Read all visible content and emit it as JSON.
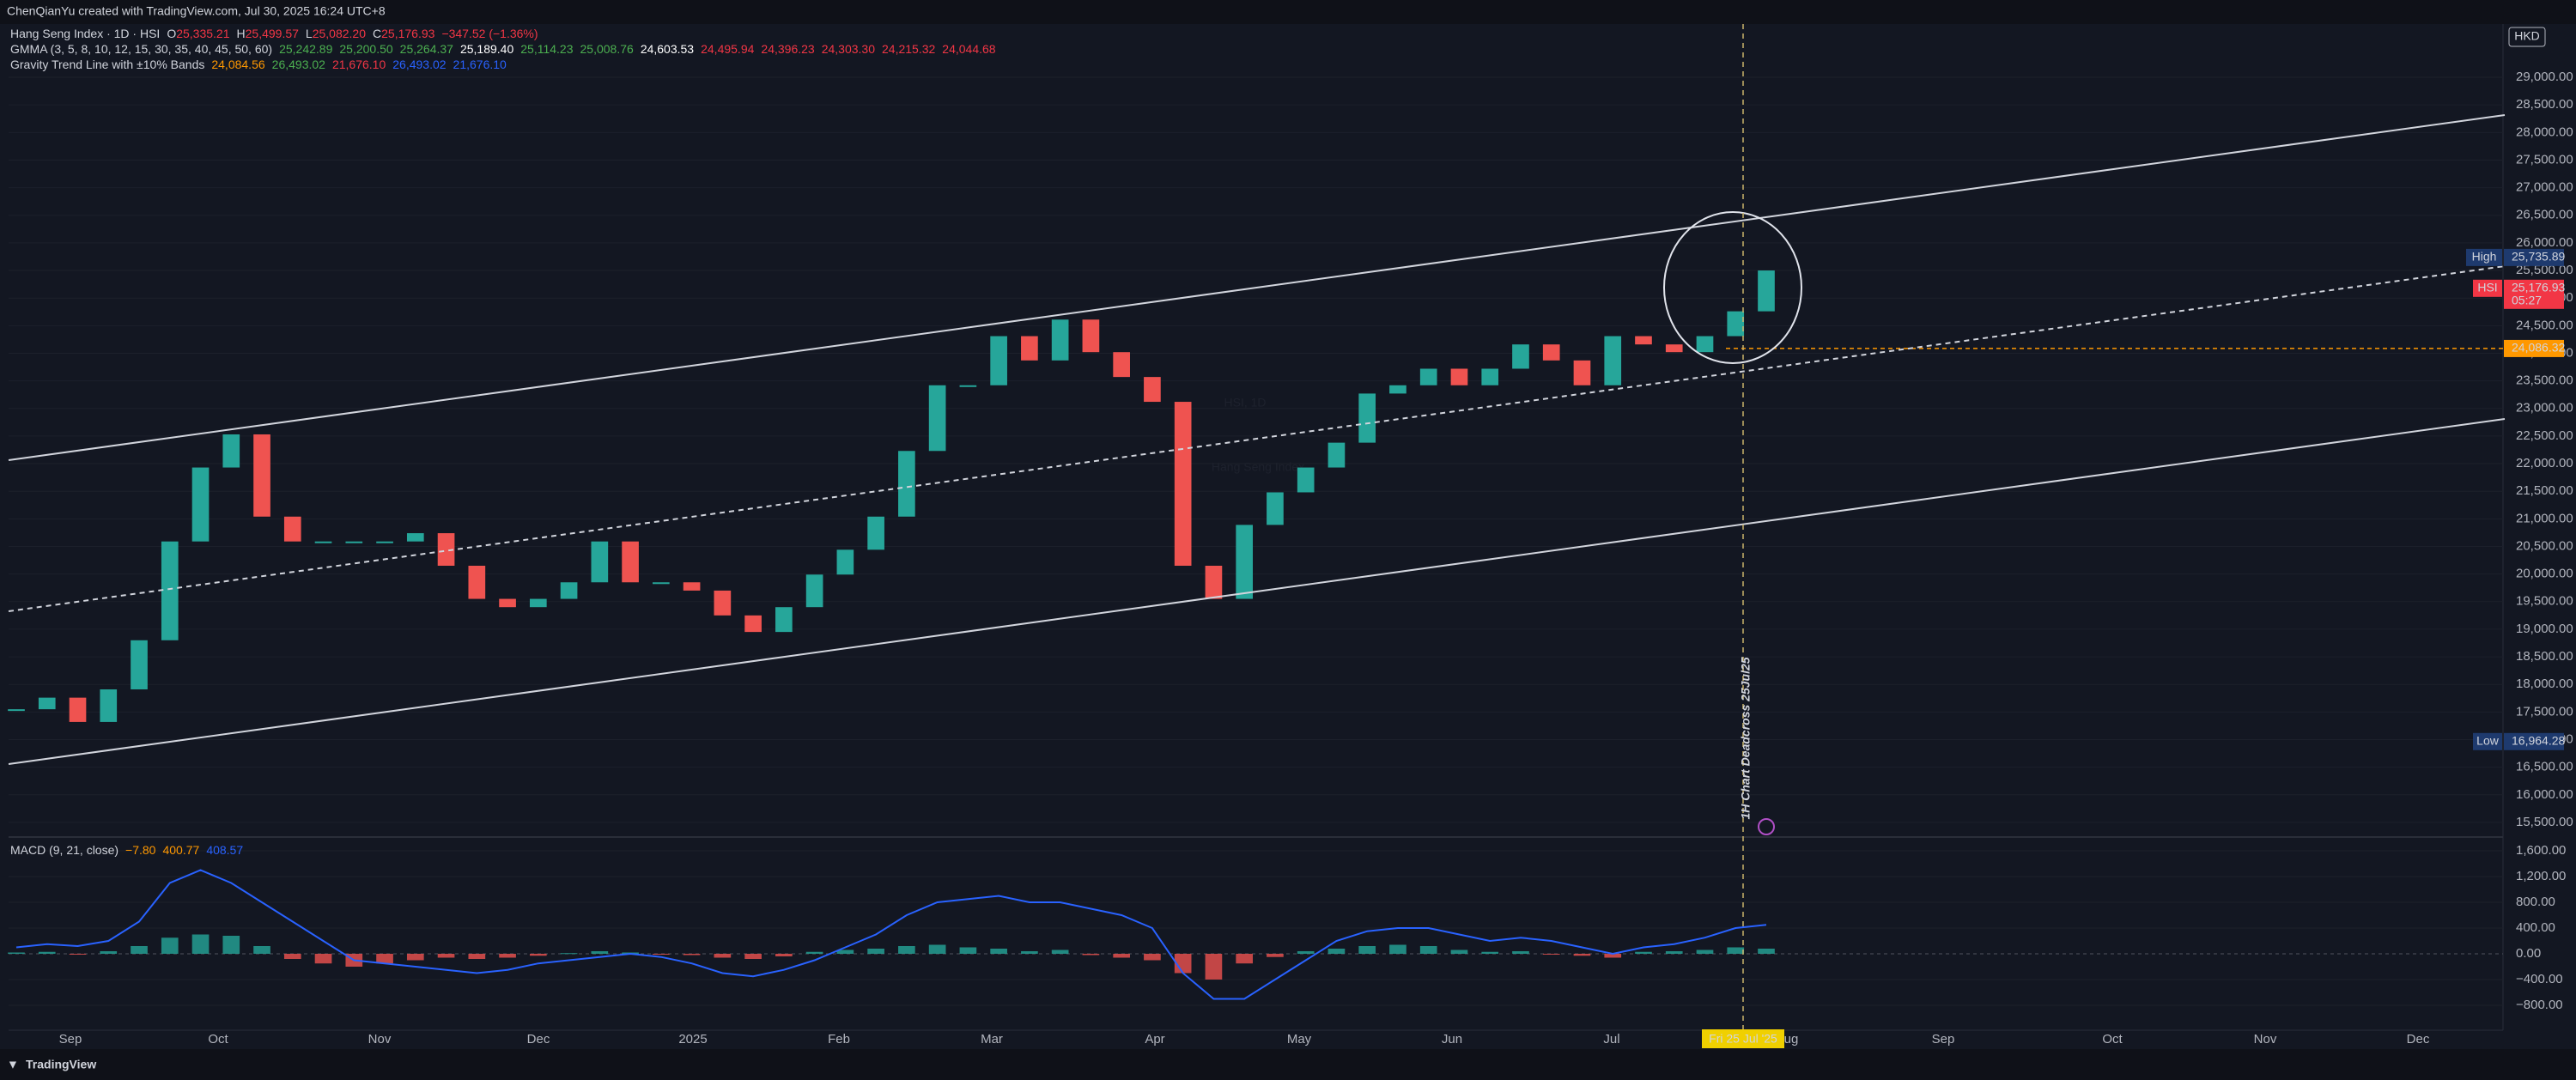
{
  "header": {
    "attribution": "ChenQianYu created with TradingView.com, Jul 30, 2025 16:24 UTC+8"
  },
  "legend": {
    "symbol": "Hang Seng Index · 1D · HSI",
    "ohlc": [
      [
        "O",
        "25,335.21"
      ],
      [
        "H",
        "25,499.57"
      ],
      [
        "L",
        "25,082.20"
      ],
      [
        "C",
        "25,176.93"
      ]
    ],
    "change": "−347.52 (−1.36%)"
  },
  "gmma": {
    "name": "GMMA (3, 5, 8, 10, 12, 15, 30, 35, 40, 45, 50, 60)",
    "values": [
      "25,242.89",
      "25,200.50",
      "25,264.37",
      "25,189.40",
      "25,114.23",
      "25,008.76",
      "24,603.53",
      "24,495.94",
      "24,396.23",
      "24,303.30",
      "24,215.32",
      "24,044.68"
    ],
    "colors": [
      "#4caf50",
      "#4caf50",
      "#4caf50",
      "#ffffff",
      "#4caf50",
      "#4caf50",
      "#ffffff",
      "#f23645",
      "#f23645",
      "#f23645",
      "#f23645",
      "#f23645"
    ]
  },
  "gravity": {
    "name": "Gravity Trend Line with ±10% Bands",
    "values": [
      "24,084.56",
      "26,493.02",
      "21,676.10",
      "26,493.02",
      "21,676.10"
    ],
    "colors": [
      "#ff9800",
      "#4caf50",
      "#f23645",
      "#2962ff",
      "#2962ff"
    ]
  },
  "watermark": {
    "symbol": "HSI, 1D",
    "name": "Hang Seng Index"
  },
  "annotation": "1H Chart Deadcross 25Jul25",
  "cursor_date": "Fri 25 Jul '25",
  "footer": "TradingView",
  "chart_data": {
    "type": "candlestick",
    "currency": "HKD",
    "ylim": [
      15250,
      29965
    ],
    "yticks": [
      {
        "value": 15500,
        "label": "15,500.00"
      },
      {
        "value": 16000,
        "label": "16,000.00"
      },
      {
        "value": 16500,
        "label": "16,500.00"
      },
      {
        "value": 17000,
        "label": "17,000.00"
      },
      {
        "value": 17500,
        "label": "17,500.00"
      },
      {
        "value": 18000,
        "label": "18,000.00"
      },
      {
        "value": 18500,
        "label": "18,500.00"
      },
      {
        "value": 19000,
        "label": "19,000.00"
      },
      {
        "value": 19500,
        "label": "19,500.00"
      },
      {
        "value": 20000,
        "label": "20,000.00"
      },
      {
        "value": 20500,
        "label": "20,500.00"
      },
      {
        "value": 21000,
        "label": "21,000.00"
      },
      {
        "value": 21500,
        "label": "21,500.00"
      },
      {
        "value": 22000,
        "label": "22,000.00"
      },
      {
        "value": 22500,
        "label": "22,500.00"
      },
      {
        "value": 23000,
        "label": "23,000.00"
      },
      {
        "value": 23500,
        "label": "23,500.00"
      },
      {
        "value": 24000,
        "label": "24,000.00"
      },
      {
        "value": 24500,
        "label": "24,500.00"
      },
      {
        "value": 25000,
        "label": "25,000.00"
      },
      {
        "value": 25500,
        "label": "25,500.00"
      },
      {
        "value": 26000,
        "label": "26,000.00"
      },
      {
        "value": 26500,
        "label": "26,500.00"
      },
      {
        "value": 27000,
        "label": "27,000.00"
      },
      {
        "value": 27500,
        "label": "27,500.00"
      },
      {
        "value": 28000,
        "label": "28,000.00"
      },
      {
        "value": 28500,
        "label": "28,500.00"
      },
      {
        "value": 29000,
        "label": "29,000.00"
      }
    ],
    "categories": [
      "Sep",
      "Oct",
      "Nov",
      "Dec",
      "2025",
      "Feb",
      "Mar",
      "Apr",
      "May",
      "Jun",
      "Jul",
      "Aug",
      "Sep",
      "Oct",
      "Nov",
      "Dec"
    ],
    "up_color": "#26a69a",
    "down_color": "#ef5350",
    "price": {
      "values": [
        17550,
        17760,
        17320,
        17910,
        18800,
        20590,
        21930,
        22530,
        21040,
        20590,
        20590,
        20590,
        20590,
        20740,
        20150,
        19550,
        19400,
        19550,
        19850,
        20590,
        19850,
        19850,
        19700,
        19250,
        18950,
        19400,
        19990,
        20440,
        21040,
        22230,
        23420,
        23420,
        24310,
        23870,
        24610,
        24020,
        23570,
        23120,
        20150,
        19550,
        20890,
        21480,
        21930,
        22380,
        23270,
        23420,
        23720,
        23420,
        23720,
        24160,
        23870,
        23420,
        24310,
        24160,
        24020,
        24310,
        24760,
        25500
      ]
    },
    "tags": [
      {
        "name": "High",
        "value": 25735.89,
        "label": "25,735.89",
        "color": "#1e3a6e"
      },
      {
        "name": "HSI",
        "value": 25176.93,
        "label": "25,176.93",
        "sub": "05:27",
        "color": "#f23645"
      },
      {
        "value": 24086.32,
        "label": "24,086.32",
        "color": "#ff9800"
      },
      {
        "name": "Low",
        "value": 16964.28,
        "label": "16,964.28",
        "color": "#1e3a6e"
      }
    ],
    "macd": {
      "name": "MACD (9, 21, close)",
      "readings": [
        {
          "text": "−7.80",
          "color": "#ff9800"
        },
        {
          "text": "400.77",
          "color": "#ff9800"
        },
        {
          "text": "408.57",
          "color": "#2962ff"
        }
      ],
      "ylim": [
        -1187,
        1800
      ],
      "yticks": [
        {
          "value": 1600,
          "label": "1,600.00"
        },
        {
          "value": 1200,
          "label": "1,200.00"
        },
        {
          "value": 800,
          "label": "800.00"
        },
        {
          "value": 400,
          "label": "400.00"
        },
        {
          "value": 0,
          "label": "0.00"
        },
        {
          "value": -400,
          "label": "−400.00"
        },
        {
          "value": -800,
          "label": "−800.00"
        }
      ],
      "histogram": [
        20,
        30,
        -10,
        40,
        120,
        250,
        300,
        280,
        120,
        -80,
        -150,
        -200,
        -150,
        -100,
        -60,
        -80,
        -60,
        -30,
        10,
        40,
        20,
        -10,
        -20,
        -60,
        -80,
        -40,
        30,
        60,
        80,
        120,
        140,
        100,
        80,
        40,
        60,
        -20,
        -60,
        -100,
        -300,
        -400,
        -150,
        -50,
        40,
        80,
        120,
        140,
        120,
        60,
        30,
        40,
        -10,
        -30,
        -60,
        30,
        40,
        60,
        100,
        80
      ],
      "line": {
        "color": "#2962ff",
        "values": [
          100,
          150,
          120,
          200,
          500,
          1100,
          1300,
          1100,
          800,
          500,
          200,
          -100,
          -150,
          -200,
          -250,
          -300,
          -250,
          -150,
          -100,
          -50,
          0,
          -50,
          -150,
          -300,
          -350,
          -250,
          -100,
          100,
          300,
          600,
          800,
          850,
          900,
          800,
          800,
          700,
          600,
          400,
          -300,
          -700,
          -700,
          -400,
          -100,
          200,
          350,
          400,
          400,
          300,
          200,
          250,
          200,
          100,
          0,
          100,
          150,
          250,
          400,
          450
        ]
      }
    }
  }
}
